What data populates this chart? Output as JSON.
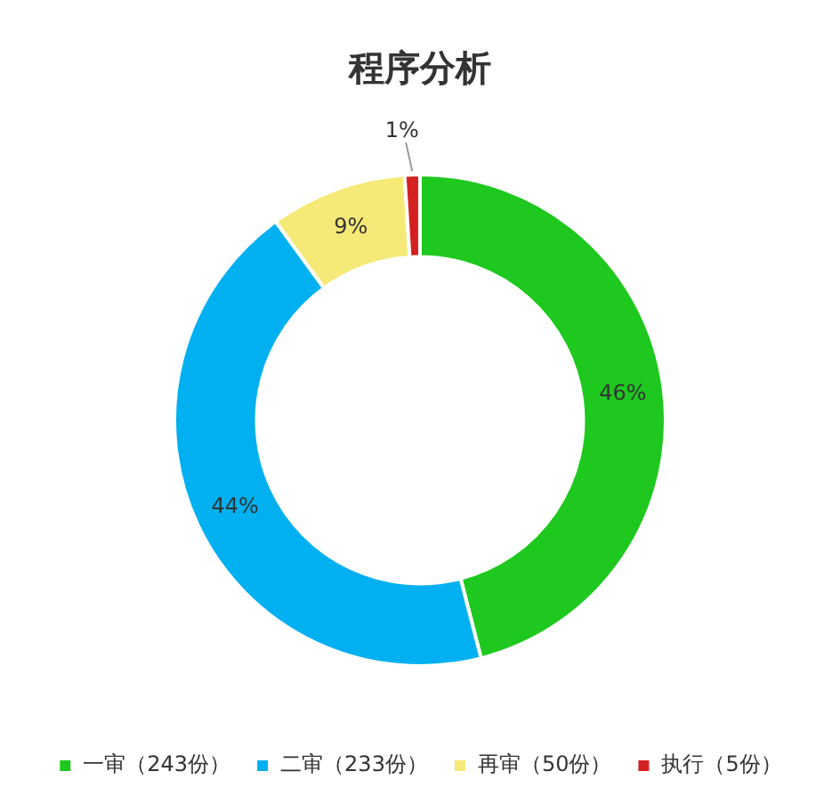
{
  "chart_data": {
    "type": "donut",
    "title": "程序分析",
    "categories": [
      "一审（243份）",
      "二审（233份）",
      "再审（50份）",
      "执行（5份）"
    ],
    "values": [
      46,
      44,
      9,
      1
    ],
    "colors": [
      "#1ec81e",
      "#00b0f0",
      "#f5ea78",
      "#d42020"
    ],
    "value_labels": [
      "46%",
      "44%",
      "9%",
      "1%"
    ],
    "legend": "bottom"
  }
}
